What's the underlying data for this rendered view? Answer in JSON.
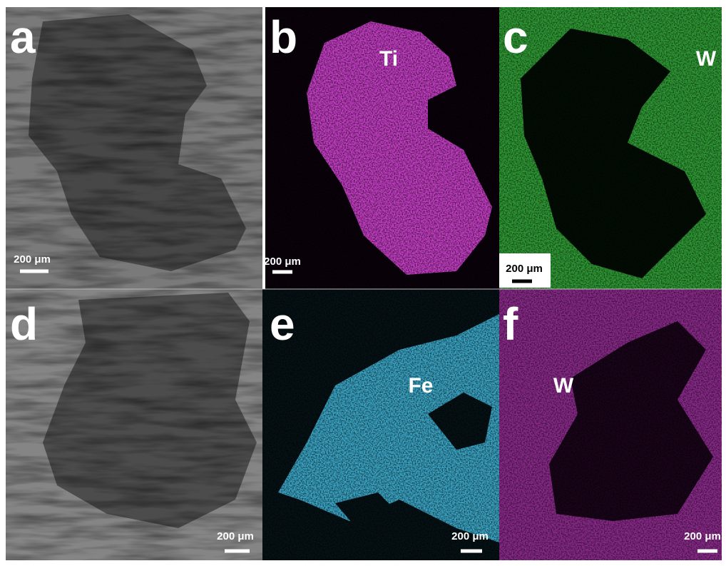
{
  "panels": [
    {
      "letter": "a",
      "scale_bar": "200 μm"
    },
    {
      "letter": "b",
      "element": "Ti",
      "scale_bar": "200 μm"
    },
    {
      "letter": "c",
      "element": "W",
      "scale_bar": "200 μm"
    },
    {
      "letter": "d",
      "scale_bar": "200 μm"
    },
    {
      "letter": "e",
      "element": "Fe",
      "scale_bar": "200 μm"
    },
    {
      "letter": "f",
      "element": "W",
      "scale_bar": "200 μm"
    }
  ]
}
